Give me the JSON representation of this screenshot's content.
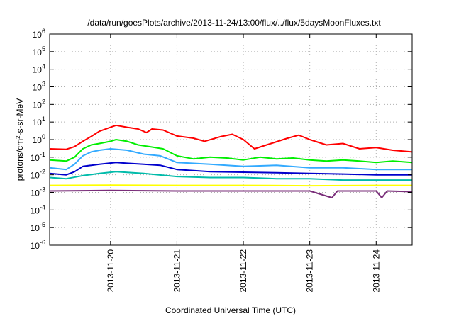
{
  "chart_data": {
    "type": "line",
    "title": "/data/run/goesPlots/archive/2013-11-24/13:00/flux/../flux/5daysMoonFluxes.txt",
    "xlabel": "Coordinated Universal Time (UTC)",
    "ylabel": {
      "base": "protons/cm",
      "sup": "2",
      "rest": "-s-sr-MeV"
    },
    "y_scale": "log",
    "ylim": [
      1e-06,
      1000000.0
    ],
    "xlim": [
      "2013-11-19T02:00",
      "2013-11-24T13:00"
    ],
    "grid": true,
    "y_ticks": [
      {
        "value": 1e-06,
        "base": "10",
        "exp": "-6"
      },
      {
        "value": 1e-05,
        "base": "10",
        "exp": "-5"
      },
      {
        "value": 0.0001,
        "base": "10",
        "exp": "-4"
      },
      {
        "value": 0.001,
        "base": "10",
        "exp": "-3"
      },
      {
        "value": 0.01,
        "base": "10",
        "exp": "-2"
      },
      {
        "value": 0.1,
        "base": "10",
        "exp": "-1"
      },
      {
        "value": 1,
        "base": "10",
        "exp": "0"
      },
      {
        "value": 10.0,
        "base": "10",
        "exp": "1"
      },
      {
        "value": 100.0,
        "base": "10",
        "exp": "2"
      },
      {
        "value": 1000.0,
        "base": "10",
        "exp": "3"
      },
      {
        "value": 10000.0,
        "base": "10",
        "exp": "4"
      },
      {
        "value": 100000.0,
        "base": "10",
        "exp": "5"
      },
      {
        "value": 1000000.0,
        "base": "10",
        "exp": "6"
      }
    ],
    "x_ticks": [
      "2013-11-20",
      "2013-11-21",
      "2013-11-22",
      "2013-11-23",
      "2013-11-24"
    ],
    "series": [
      {
        "color": "#ff0000",
        "values": [
          [
            "2013-11-19T02:00",
            0.3
          ],
          [
            "2013-11-19T08:00",
            0.28
          ],
          [
            "2013-11-19T11:00",
            0.4
          ],
          [
            "2013-11-19T14:00",
            0.8
          ],
          [
            "2013-11-19T17:00",
            1.5
          ],
          [
            "2013-11-19T20:00",
            3.0
          ],
          [
            "2013-11-20T00:00",
            5.0
          ],
          [
            "2013-11-20T02:00",
            6.5
          ],
          [
            "2013-11-20T06:00",
            5.0
          ],
          [
            "2013-11-20T10:00",
            4.0
          ],
          [
            "2013-11-20T13:00",
            2.5
          ],
          [
            "2013-11-20T15:00",
            4.0
          ],
          [
            "2013-11-20T19:00",
            3.5
          ],
          [
            "2013-11-21T00:00",
            1.6
          ],
          [
            "2013-11-21T06:00",
            1.2
          ],
          [
            "2013-11-21T10:00",
            0.8
          ],
          [
            "2013-11-21T16:00",
            1.5
          ],
          [
            "2013-11-21T20:00",
            2.0
          ],
          [
            "2013-11-22T00:00",
            1.0
          ],
          [
            "2013-11-22T04:00",
            0.3
          ],
          [
            "2013-11-22T10:00",
            0.6
          ],
          [
            "2013-11-22T16:00",
            1.2
          ],
          [
            "2013-11-22T20:00",
            1.8
          ],
          [
            "2013-11-23T00:00",
            1.0
          ],
          [
            "2013-11-23T06:00",
            0.5
          ],
          [
            "2013-11-23T12:00",
            0.6
          ],
          [
            "2013-11-23T18:00",
            0.3
          ],
          [
            "2013-11-24T00:00",
            0.35
          ],
          [
            "2013-11-24T06:00",
            0.25
          ],
          [
            "2013-11-24T13:00",
            0.2
          ]
        ]
      },
      {
        "color": "#00ee00",
        "values": [
          [
            "2013-11-19T02:00",
            0.07
          ],
          [
            "2013-11-19T08:00",
            0.06
          ],
          [
            "2013-11-19T11:00",
            0.1
          ],
          [
            "2013-11-19T14:00",
            0.3
          ],
          [
            "2013-11-19T17:00",
            0.5
          ],
          [
            "2013-11-19T20:00",
            0.6
          ],
          [
            "2013-11-20T00:00",
            0.8
          ],
          [
            "2013-11-20T02:00",
            1.0
          ],
          [
            "2013-11-20T06:00",
            0.8
          ],
          [
            "2013-11-20T10:00",
            0.5
          ],
          [
            "2013-11-20T14:00",
            0.4
          ],
          [
            "2013-11-20T19:00",
            0.3
          ],
          [
            "2013-11-21T00:00",
            0.12
          ],
          [
            "2013-11-21T06:00",
            0.08
          ],
          [
            "2013-11-21T12:00",
            0.1
          ],
          [
            "2013-11-21T18:00",
            0.09
          ],
          [
            "2013-11-22T00:00",
            0.07
          ],
          [
            "2013-11-22T06:00",
            0.1
          ],
          [
            "2013-11-22T12:00",
            0.08
          ],
          [
            "2013-11-22T18:00",
            0.09
          ],
          [
            "2013-11-23T00:00",
            0.07
          ],
          [
            "2013-11-23T06:00",
            0.06
          ],
          [
            "2013-11-23T12:00",
            0.07
          ],
          [
            "2013-11-23T18:00",
            0.06
          ],
          [
            "2013-11-24T00:00",
            0.05
          ],
          [
            "2013-11-24T06:00",
            0.06
          ],
          [
            "2013-11-24T13:00",
            0.05
          ]
        ]
      },
      {
        "color": "#33aaff",
        "values": [
          [
            "2013-11-19T02:00",
            0.025
          ],
          [
            "2013-11-19T08:00",
            0.02
          ],
          [
            "2013-11-19T11:00",
            0.04
          ],
          [
            "2013-11-19T14:00",
            0.12
          ],
          [
            "2013-11-19T17:00",
            0.2
          ],
          [
            "2013-11-19T20:00",
            0.25
          ],
          [
            "2013-11-20T00:00",
            0.3
          ],
          [
            "2013-11-20T06:00",
            0.25
          ],
          [
            "2013-11-20T12:00",
            0.15
          ],
          [
            "2013-11-20T18:00",
            0.12
          ],
          [
            "2013-11-21T00:00",
            0.05
          ],
          [
            "2013-11-21T12:00",
            0.04
          ],
          [
            "2013-11-22T00:00",
            0.03
          ],
          [
            "2013-11-22T12:00",
            0.035
          ],
          [
            "2013-11-23T00:00",
            0.025
          ],
          [
            "2013-11-23T12:00",
            0.025
          ],
          [
            "2013-11-24T00:00",
            0.02
          ],
          [
            "2013-11-24T13:00",
            0.02
          ]
        ]
      },
      {
        "color": "#0000cc",
        "values": [
          [
            "2013-11-19T02:00",
            0.012
          ],
          [
            "2013-11-19T08:00",
            0.01
          ],
          [
            "2013-11-19T11:00",
            0.015
          ],
          [
            "2013-11-19T14:00",
            0.03
          ],
          [
            "2013-11-19T20:00",
            0.04
          ],
          [
            "2013-11-20T02:00",
            0.05
          ],
          [
            "2013-11-20T06:00",
            0.045
          ],
          [
            "2013-11-20T12:00",
            0.04
          ],
          [
            "2013-11-20T18:00",
            0.035
          ],
          [
            "2013-11-21T00:00",
            0.02
          ],
          [
            "2013-11-21T12:00",
            0.015
          ],
          [
            "2013-11-22T00:00",
            0.014
          ],
          [
            "2013-11-22T12:00",
            0.013
          ],
          [
            "2013-11-23T00:00",
            0.012
          ],
          [
            "2013-11-23T12:00",
            0.011
          ],
          [
            "2013-11-24T00:00",
            0.01
          ],
          [
            "2013-11-24T13:00",
            0.01
          ]
        ]
      },
      {
        "color": "#00bbaa",
        "values": [
          [
            "2013-11-19T02:00",
            0.007
          ],
          [
            "2013-11-19T08:00",
            0.006
          ],
          [
            "2013-11-19T14:00",
            0.009
          ],
          [
            "2013-11-19T20:00",
            0.012
          ],
          [
            "2013-11-20T02:00",
            0.015
          ],
          [
            "2013-11-20T12:00",
            0.012
          ],
          [
            "2013-11-21T00:00",
            0.008
          ],
          [
            "2013-11-21T12:00",
            0.007
          ],
          [
            "2013-11-22T00:00",
            0.007
          ],
          [
            "2013-11-22T12:00",
            0.006
          ],
          [
            "2013-11-23T00:00",
            0.006
          ],
          [
            "2013-11-23T12:00",
            0.005
          ],
          [
            "2013-11-24T00:00",
            0.005
          ],
          [
            "2013-11-24T13:00",
            0.005
          ]
        ]
      },
      {
        "color": "#ffff00",
        "values": [
          [
            "2013-11-19T02:00",
            0.0025
          ],
          [
            "2013-11-20T00:00",
            0.0026
          ],
          [
            "2013-11-21T00:00",
            0.0025
          ],
          [
            "2013-11-22T00:00",
            0.0025
          ],
          [
            "2013-11-23T00:00",
            0.0024
          ],
          [
            "2013-11-24T00:00",
            0.0025
          ],
          [
            "2013-11-24T13:00",
            0.0025
          ]
        ]
      },
      {
        "color": "#7a2e7a",
        "values": [
          [
            "2013-11-19T02:00",
            0.0012
          ],
          [
            "2013-11-20T00:00",
            0.0013
          ],
          [
            "2013-11-21T00:00",
            0.0012
          ],
          [
            "2013-11-22T00:00",
            0.0012
          ],
          [
            "2013-11-23T00:00",
            0.0012
          ],
          [
            "2013-11-23T08:00",
            0.0005
          ],
          [
            "2013-11-23T10:00",
            0.0012
          ],
          [
            "2013-11-24T00:00",
            0.0012
          ],
          [
            "2013-11-24T02:00",
            0.0005
          ],
          [
            "2013-11-24T04:00",
            0.0012
          ],
          [
            "2013-11-24T13:00",
            0.0011
          ]
        ]
      }
    ]
  }
}
